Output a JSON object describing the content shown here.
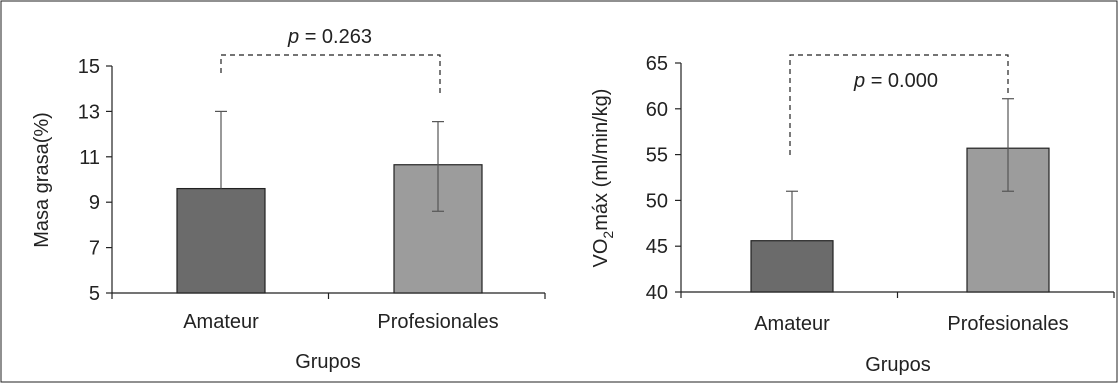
{
  "colors": {
    "amateur_bar": "#6b6b6b",
    "profesionales_bar": "#9c9c9c",
    "axis": "#222222",
    "error_bar": "#555555",
    "annotation_line": "#222222",
    "frame": "#222222"
  },
  "chart_data": [
    {
      "type": "bar",
      "title": "",
      "xlabel": "Grupos",
      "ylabel": "Masa grasa(%)",
      "categories": [
        "Amateur",
        "Profesionales"
      ],
      "values": [
        9.6,
        10.65
      ],
      "error_upper": [
        13.0,
        12.55
      ],
      "error_lower": [
        9.6,
        8.6
      ],
      "ylim": [
        5,
        15
      ],
      "yticks": [
        "5",
        "7",
        "9",
        "11",
        "13",
        "15"
      ],
      "annotation": {
        "prefix": "p",
        "text": " = 0.263"
      },
      "grid": false,
      "legend": "none"
    },
    {
      "type": "bar",
      "title": "",
      "xlabel": "Grupos",
      "ylabel_main": "VO",
      "ylabel_sub": "2",
      "ylabel_rest": "máx (ml/min/kg)",
      "categories": [
        "Amateur",
        "Profesionales"
      ],
      "values": [
        45.6,
        55.7
      ],
      "error_upper": [
        51.0,
        61.1
      ],
      "error_lower": [
        45.6,
        51.0
      ],
      "ylim": [
        40,
        65
      ],
      "yticks": [
        "40",
        "45",
        "50",
        "55",
        "60",
        "65"
      ],
      "annotation": {
        "prefix": "p",
        "text": " = 0.000"
      },
      "grid": false,
      "legend": "none"
    }
  ]
}
